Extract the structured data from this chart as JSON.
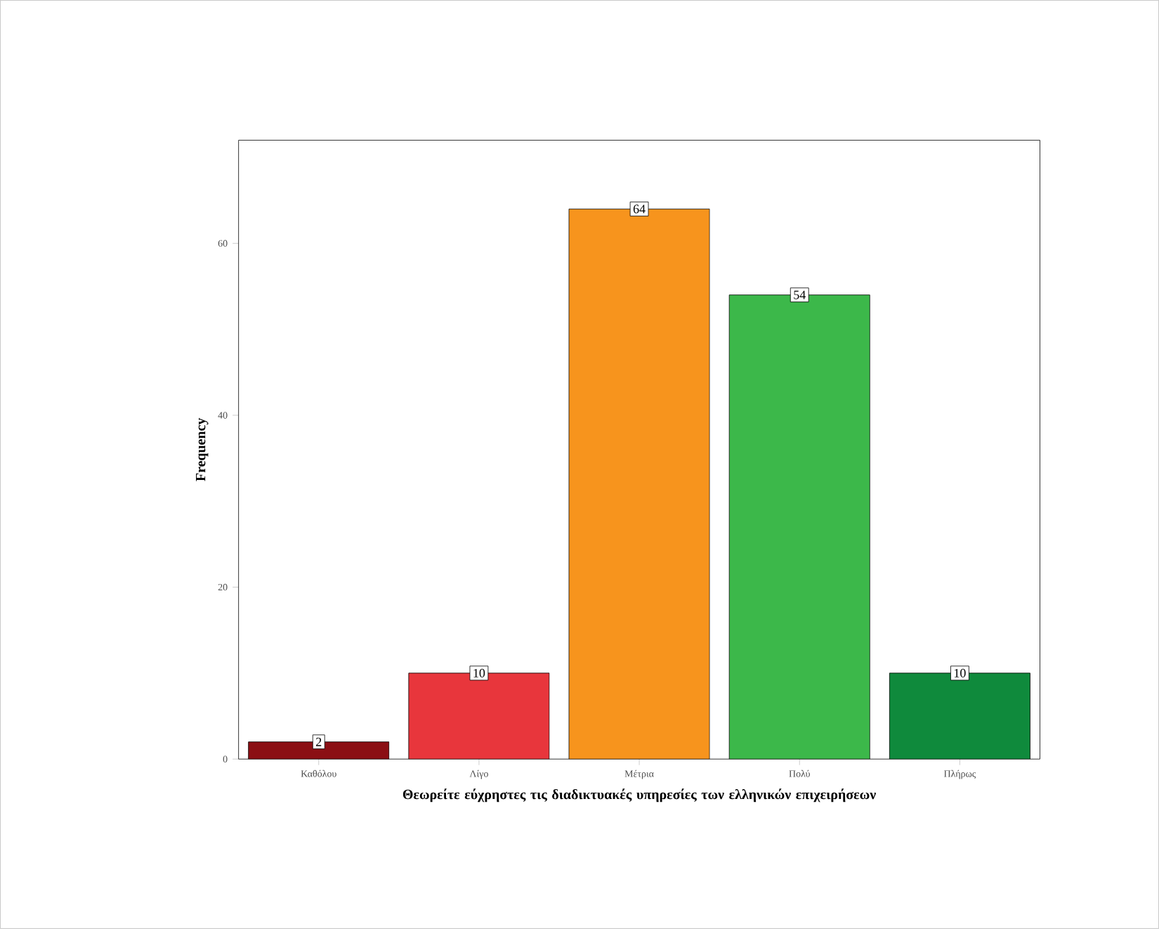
{
  "chart_data": {
    "type": "bar",
    "xlabel": "Θεωρείτε εύχρηστες τις διαδικτυακές υπηρεσίες των ελληνικών επιχειρήσεων",
    "ylabel": "Frequency",
    "categories": [
      "Καθόλου",
      "Λίγο",
      "Μέτρια",
      "Πολύ",
      "Πλήρως"
    ],
    "values": [
      2,
      10,
      64,
      54,
      10
    ],
    "colors": [
      "#8b0f14",
      "#e8363c",
      "#f7941d",
      "#3cb84a",
      "#0f8a3c"
    ],
    "ylim": [
      0,
      72
    ],
    "yticks": [
      0,
      20,
      40,
      60
    ],
    "data_labels": true
  }
}
